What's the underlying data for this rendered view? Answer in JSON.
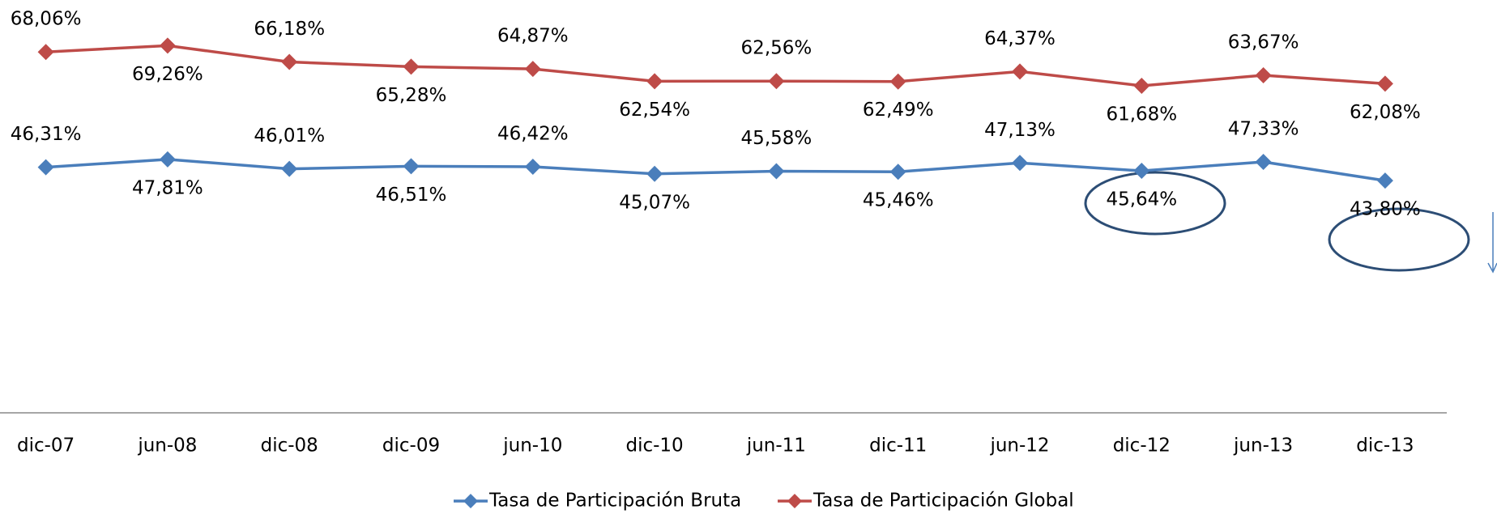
{
  "chart_data": {
    "type": "line",
    "categories": [
      "dic-07",
      "jun-08",
      "dic-08",
      "dic-09",
      "jun-10",
      "dic-10",
      "jun-11",
      "dic-11",
      "jun-12",
      "dic-12",
      "jun-13",
      "dic-13"
    ],
    "series": [
      {
        "name": "Tasa de Participación Bruta",
        "color": "#4a7ebb",
        "values": [
          46.31,
          47.81,
          46.01,
          46.51,
          46.42,
          45.07,
          45.58,
          45.46,
          47.13,
          45.64,
          47.33,
          43.8
        ],
        "value_labels": [
          "46,31%",
          "47,81%",
          "46,01%",
          "46,51%",
          "46,42%",
          "45,07%",
          "45,58%",
          "45,46%",
          "47,13%",
          "45,64%",
          "47,33%",
          "43,80%"
        ]
      },
      {
        "name": "Tasa de Participación Global",
        "color": "#be4b48",
        "values": [
          68.06,
          69.26,
          66.18,
          65.28,
          64.87,
          62.54,
          62.56,
          62.49,
          64.37,
          61.68,
          63.67,
          62.08
        ],
        "value_labels": [
          "68,06%",
          "69,26%",
          "66,18%",
          "65,28%",
          "64,87%",
          "62,54%",
          "62,56%",
          "62,49%",
          "64,37%",
          "61,68%",
          "63,67%",
          "62,08%"
        ]
      }
    ],
    "ylim": [
      0,
      70
    ],
    "legend": "bottom"
  }
}
